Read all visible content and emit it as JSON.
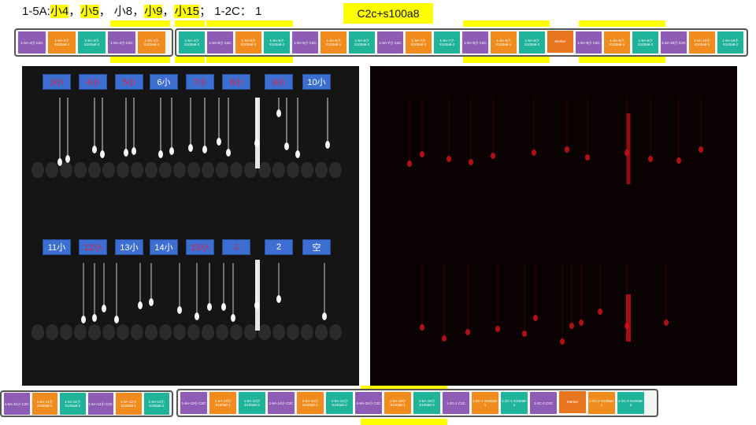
{
  "header": {
    "prefix": "1-5A:",
    "items": [
      {
        "text": "小4",
        "highlight": true
      },
      {
        "text": "，",
        "highlight": false
      },
      {
        "text": "小5",
        "highlight": true
      },
      {
        "text": "，  小8，",
        "highlight": false
      },
      {
        "text": "小9",
        "highlight": true
      },
      {
        "text": "，",
        "highlight": false
      },
      {
        "text": "小15",
        "highlight": true
      },
      {
        "text": "；  1-2C：  1",
        "highlight": false
      }
    ],
    "badge": "C2c+s100a8"
  },
  "colors": {
    "purple": "#8e5cb5",
    "orange": "#f08c1e",
    "teal": "#1fb39a",
    "marker": "#e8761f",
    "yellow": "#ffff00",
    "label_blue": "#3c6fd1",
    "label_red": "#e8213b"
  },
  "top_strip_left": [
    {
      "text": "1-5A-3小 C2C",
      "color": "purple"
    },
    {
      "text": "1-5A-3小 S100a8-1",
      "color": "orange"
    },
    {
      "text": "1-5A-3小 S100a8-2",
      "color": "teal"
    },
    {
      "text": "1-5A-4小 C2C",
      "color": "purple"
    },
    {
      "text": "1-5A-4小 S100a8-1",
      "color": "orange"
    }
  ],
  "top_strip_right": [
    {
      "text": "1-5A-4小 S100a8-2",
      "color": "teal"
    },
    {
      "text": "1-5A-5小 C2C",
      "color": "purple"
    },
    {
      "text": "1-5A-5小 S100a8-1",
      "color": "orange"
    },
    {
      "text": "1-5A-5小 S100a8-2",
      "color": "teal"
    },
    {
      "text": "1-5A-6小 C2C",
      "color": "purple"
    },
    {
      "text": "1-5A-6小 S100a8-1",
      "color": "orange"
    },
    {
      "text": "1-5A-6小 S100a8-2",
      "color": "teal"
    },
    {
      "text": "1-5A-7小 C2C",
      "color": "purple"
    },
    {
      "text": "1-5A-7小 S100a8-1",
      "color": "orange"
    },
    {
      "text": "1-5A-7小 S100a8-2",
      "color": "teal"
    },
    {
      "text": "1-5A-8小 C2C",
      "color": "purple"
    },
    {
      "text": "1-5A-8小 S100a8-1",
      "color": "orange"
    },
    {
      "text": "1-5A-8小 S100a8-2",
      "color": "teal"
    },
    {
      "text": "Marker",
      "color": "marker"
    },
    {
      "text": "1-5A-9小 C2C",
      "color": "purple"
    },
    {
      "text": "1-5A-9小 S100a8-1",
      "color": "orange"
    },
    {
      "text": "1-5A-9小 S100a8-2",
      "color": "teal"
    },
    {
      "text": "1-5A-10小 C2C",
      "color": "purple"
    },
    {
      "text": "1-5A-10小 S100a8-1",
      "color": "orange"
    },
    {
      "text": "1-5A-10小 S100a8-2",
      "color": "teal"
    }
  ],
  "bottom_strip_left": [
    {
      "text": "1-5A-11小 C2C",
      "color": "purple"
    },
    {
      "text": "1-5A-11小 S100a8-1",
      "color": "orange"
    },
    {
      "text": "1-5A-11小 S100a8-2",
      "color": "teal"
    },
    {
      "text": "1-5A-12小 C2C",
      "color": "purple"
    },
    {
      "text": "1-5A-12小 S100a8-1",
      "color": "orange"
    },
    {
      "text": "1-5A-12小 S100a8-2",
      "color": "teal"
    }
  ],
  "bottom_strip_right": [
    {
      "text": "1-5A-13小 C2C",
      "color": "purple"
    },
    {
      "text": "1-5A-13小 S100a8-1",
      "color": "orange"
    },
    {
      "text": "1-5A-13小 S100a8-2",
      "color": "teal"
    },
    {
      "text": "1-5A-14小 C2C",
      "color": "purple"
    },
    {
      "text": "1-5A-14小 S100a8-1",
      "color": "orange"
    },
    {
      "text": "1-5A-14小 S100a8-2",
      "color": "teal"
    },
    {
      "text": "1-5A-15小 C2C",
      "color": "purple"
    },
    {
      "text": "1-5A-15小 S100a8-1",
      "color": "orange"
    },
    {
      "text": "1-5A-15小 S100a8-2",
      "color": "teal"
    },
    {
      "text": "1-2C-1 C2C",
      "color": "purple"
    },
    {
      "text": "1-2C-1 S100a8-1",
      "color": "orange"
    },
    {
      "text": "1-2C-1 S100a8-2",
      "color": "teal"
    },
    {
      "text": "1-2C-2 C2C",
      "color": "purple"
    },
    {
      "text": "Marker",
      "color": "marker"
    },
    {
      "text": "1-2C-2 S100a8-1",
      "color": "orange"
    },
    {
      "text": "1-2C-2 S100a8-2",
      "color": "teal"
    }
  ],
  "gel_labels_top": [
    {
      "text": "3小",
      "red": true
    },
    {
      "text": "4小",
      "red": true
    },
    {
      "text": "5小",
      "red": true
    },
    {
      "text": "6小",
      "red": false
    },
    {
      "text": "7小",
      "red": true
    },
    {
      "text": "8小",
      "red": true
    },
    {
      "text": "9小",
      "red": true
    },
    {
      "text": "10小",
      "red": false
    }
  ],
  "gel_labels_bottom": [
    {
      "text": "11小",
      "red": false
    },
    {
      "text": "12小",
      "red": true
    },
    {
      "text": "13小",
      "red": false
    },
    {
      "text": "14小",
      "red": false
    },
    {
      "text": "15小",
      "red": true
    },
    {
      "text": "1",
      "red": true
    },
    {
      "text": "2",
      "red": false
    },
    {
      "text": "空",
      "red": false
    }
  ]
}
